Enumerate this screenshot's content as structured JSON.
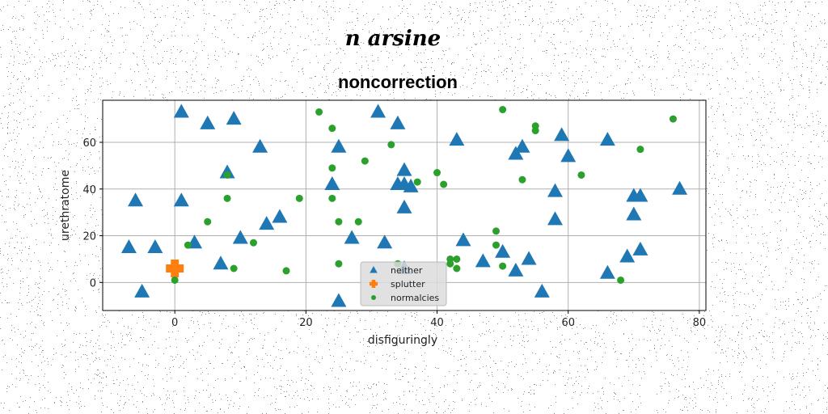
{
  "chart_data": {
    "type": "scatter",
    "suptitle": "n arsine",
    "title": "noncorrection",
    "xlabel": "disfiguringly",
    "ylabel": "urethratome",
    "xlim": [
      -11,
      81
    ],
    "ylim": [
      -12,
      78
    ],
    "xticks": [
      0,
      20,
      40,
      60,
      80
    ],
    "yticks": [
      0,
      20,
      40,
      60
    ],
    "grid": true,
    "legend": {
      "placement": "bottom-center"
    },
    "series": [
      {
        "name": "neither",
        "marker": "triangle",
        "color": "#1f77b4",
        "points": [
          [
            1,
            73
          ],
          [
            5,
            68
          ],
          [
            9,
            70
          ],
          [
            -6,
            35
          ],
          [
            1,
            35
          ],
          [
            -7,
            15
          ],
          [
            -3,
            15
          ],
          [
            -5,
            -4
          ],
          [
            3,
            17
          ],
          [
            7,
            8
          ],
          [
            8,
            47
          ],
          [
            10,
            19
          ],
          [
            13,
            58
          ],
          [
            14,
            25
          ],
          [
            16,
            28
          ],
          [
            24,
            42
          ],
          [
            25,
            58
          ],
          [
            25,
            -8
          ],
          [
            27,
            19
          ],
          [
            31,
            73
          ],
          [
            32,
            17
          ],
          [
            34,
            68
          ],
          [
            34,
            42
          ],
          [
            35,
            42
          ],
          [
            35,
            48
          ],
          [
            35,
            32
          ],
          [
            36,
            41
          ],
          [
            43,
            61
          ],
          [
            44,
            18
          ],
          [
            47,
            9
          ],
          [
            50,
            13
          ],
          [
            52,
            5
          ],
          [
            52,
            55
          ],
          [
            53,
            58
          ],
          [
            54,
            10
          ],
          [
            56,
            -4
          ],
          [
            58,
            39
          ],
          [
            58,
            27
          ],
          [
            59,
            63
          ],
          [
            60,
            54
          ],
          [
            66,
            61
          ],
          [
            66,
            4
          ],
          [
            69,
            11
          ],
          [
            70,
            37
          ],
          [
            70,
            29
          ],
          [
            71,
            37
          ],
          [
            71,
            14
          ],
          [
            77,
            40
          ],
          [
            35,
            6
          ]
        ]
      },
      {
        "name": "splutter",
        "marker": "plus",
        "color": "#ff7f0e",
        "points": [
          [
            0,
            6
          ]
        ]
      },
      {
        "name": "normalcies",
        "marker": "circle",
        "color": "#2ca02c",
        "points": [
          [
            22,
            73
          ],
          [
            24,
            66
          ],
          [
            24,
            49
          ],
          [
            24,
            36
          ],
          [
            25,
            26
          ],
          [
            25,
            8
          ],
          [
            29,
            52
          ],
          [
            28,
            26
          ],
          [
            33,
            59
          ],
          [
            34,
            8
          ],
          [
            37,
            43
          ],
          [
            40,
            47
          ],
          [
            41,
            42
          ],
          [
            42,
            10
          ],
          [
            42,
            8
          ],
          [
            43,
            10
          ],
          [
            43,
            6
          ],
          [
            49,
            22
          ],
          [
            49,
            16
          ],
          [
            50,
            7
          ],
          [
            50,
            74
          ],
          [
            55,
            67
          ],
          [
            55,
            65
          ],
          [
            53,
            44
          ],
          [
            62,
            46
          ],
          [
            68,
            1
          ],
          [
            71,
            57
          ],
          [
            76,
            70
          ],
          [
            0,
            1
          ],
          [
            2,
            16
          ],
          [
            5,
            26
          ],
          [
            8,
            36
          ],
          [
            8,
            46
          ],
          [
            9,
            6
          ],
          [
            12,
            17
          ],
          [
            17,
            5
          ],
          [
            19,
            36
          ]
        ]
      }
    ]
  }
}
